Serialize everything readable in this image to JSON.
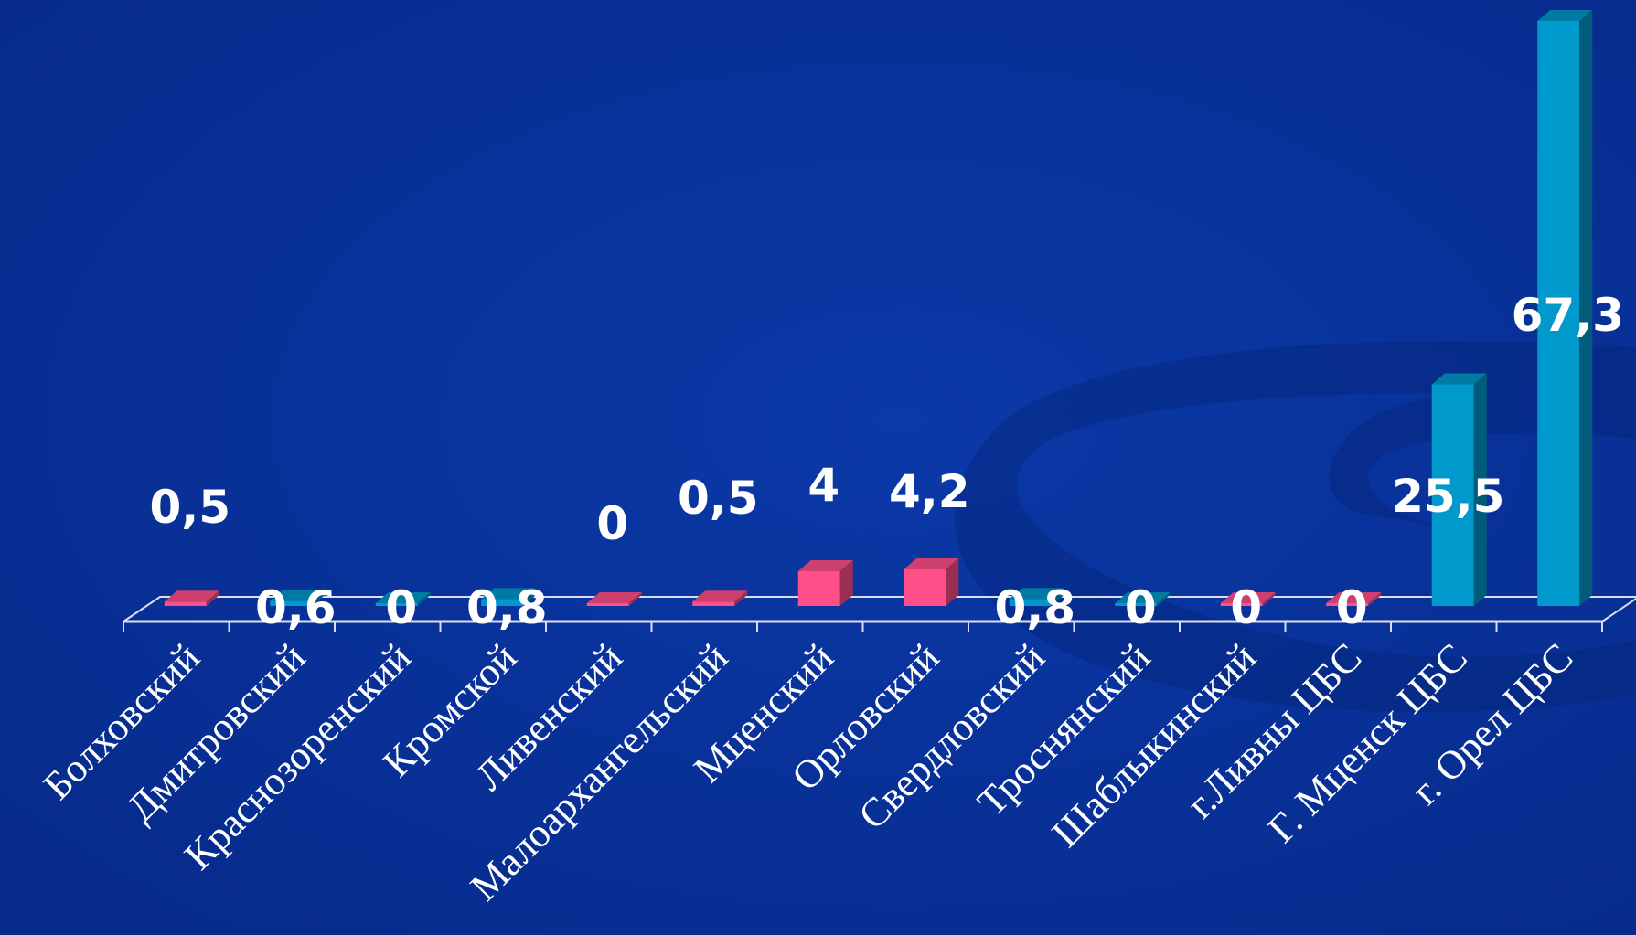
{
  "chart_data": {
    "type": "bar",
    "categories": [
      "Болховский",
      "Дмитровский",
      "Краснозоренский",
      "Кромской",
      "Ливенский",
      "Малоархангельский",
      "Мценский",
      "Орловский",
      "Свердловский",
      "Троснянский",
      "Шаблыкинский",
      "г.Ливны ЦБС",
      "Г. Мценск ЦБС",
      "г. Орел ЦБС"
    ],
    "values": [
      0.5,
      0.6,
      0,
      0.8,
      0,
      0.5,
      4,
      4.2,
      0.8,
      0,
      0,
      0,
      25.5,
      67.3
    ],
    "data_labels": [
      "0,5",
      "0,6",
      "0",
      "0,8",
      "0",
      "0,5",
      "4",
      "4,2",
      "0,8",
      "0",
      "0",
      "0",
      "25,5",
      "67,3"
    ],
    "bar_colors": [
      "#ff4f8b",
      "#0099cc",
      "#0099cc",
      "#0099cc",
      "#ff4f8b",
      "#ff4f8b",
      "#ff4f8b",
      "#ff4f8b",
      "#0099cc",
      "#0099cc",
      "#ff4f8b",
      "#ff4f8b",
      "#0099cc",
      "#0099cc"
    ],
    "title": "",
    "xlabel": "",
    "ylabel": "",
    "ylim": [
      0,
      67.3
    ],
    "grid": false,
    "legend": "none",
    "style": "3d-column"
  },
  "colors": {
    "background": "#0a2f96",
    "axis": "#d8def5",
    "text": "#ffffff"
  }
}
